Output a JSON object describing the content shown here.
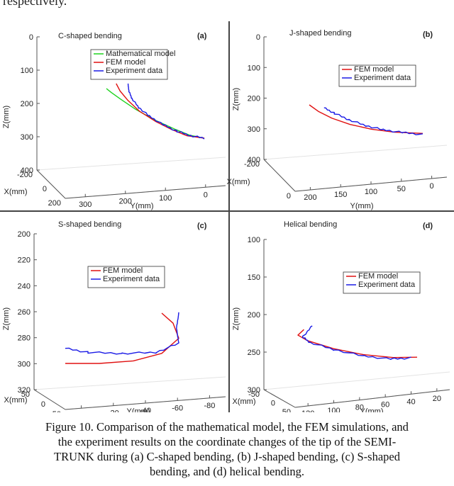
{
  "top_text": "respectively.",
  "caption_lines": [
    "Figure 10. Comparison of the mathematical model, the FEM simulations, and",
    "the experiment results on the coordinate changes of the tip of the SEMI-",
    "TRUNK during (a) C-shaped bending, (b) J-shaped bending, (c) S-shaped",
    "bending, and (d) helical bending."
  ],
  "colors": {
    "math": "#1ed31e",
    "fem": "#e01010",
    "exp": "#1a1ae6"
  },
  "chart_data": [
    {
      "id": "a",
      "type": "line",
      "title": "C-shaped bending",
      "label": "(a)",
      "z_ticks": [
        "0",
        "100",
        "200",
        "300",
        "400"
      ],
      "zlabel": "Z(mm)",
      "x_ticks": [
        "-200",
        "0",
        "200"
      ],
      "xlabel": "X(mm)",
      "y_ticks": [
        "300",
        "200",
        "100",
        "0"
      ],
      "ylabel": "Y(mm)",
      "legend": [
        "Mathematical model",
        "FEM model",
        "Experiment data"
      ],
      "series": [
        {
          "name": "Mathematical model",
          "color": "math",
          "points": [
            [
              0,
              0
            ],
            [
              0.05,
              0.08
            ],
            [
              0.15,
              0.22
            ],
            [
              0.3,
              0.42
            ],
            [
              0.5,
              0.64
            ],
            [
              0.7,
              0.82
            ],
            [
              0.85,
              0.94
            ],
            [
              1,
              1
            ]
          ]
        },
        {
          "name": "FEM model",
          "color": "fem",
          "points": [
            [
              0.1,
              -0.1
            ],
            [
              0.14,
              0.05
            ],
            [
              0.22,
              0.24
            ],
            [
              0.34,
              0.46
            ],
            [
              0.5,
              0.66
            ],
            [
              0.66,
              0.82
            ],
            [
              0.82,
              0.95
            ],
            [
              1,
              1
            ]
          ]
        },
        {
          "name": "Experiment data",
          "color": "exp",
          "points": [
            [
              0.22,
              -0.1
            ],
            [
              0.23,
              0.05
            ],
            [
              0.26,
              0.2
            ],
            [
              0.33,
              0.38
            ],
            [
              0.44,
              0.56
            ],
            [
              0.58,
              0.73
            ],
            [
              0.72,
              0.86
            ],
            [
              0.86,
              0.95
            ],
            [
              1,
              1
            ]
          ]
        }
      ]
    },
    {
      "id": "b",
      "type": "line",
      "title": "J-shaped bending",
      "label": "(b)",
      "z_ticks": [
        "0",
        "100",
        "200",
        "300",
        "400"
      ],
      "zlabel": "Z(mm)",
      "x_ticks": [
        "-200",
        "0"
      ],
      "xlabel": "X(mm)",
      "y_ticks": [
        "200",
        "150",
        "100",
        "50",
        "0"
      ],
      "ylabel": "Y(mm)",
      "legend": [
        "FEM model",
        "Experiment data"
      ],
      "series": [
        {
          "name": "FEM model",
          "color": "fem",
          "points": [
            [
              0,
              0
            ],
            [
              0.08,
              0.22
            ],
            [
              0.2,
              0.45
            ],
            [
              0.36,
              0.66
            ],
            [
              0.55,
              0.82
            ],
            [
              0.75,
              0.92
            ],
            [
              1,
              0.96
            ]
          ]
        },
        {
          "name": "Experiment data",
          "color": "exp",
          "points": [
            [
              0.13,
              0.1
            ],
            [
              0.22,
              0.28
            ],
            [
              0.35,
              0.5
            ],
            [
              0.5,
              0.7
            ],
            [
              0.65,
              0.84
            ],
            [
              0.82,
              0.93
            ],
            [
              1,
              1
            ]
          ]
        }
      ]
    },
    {
      "id": "c",
      "type": "line",
      "title": "S-shaped bending",
      "label": "(c)",
      "z_ticks": [
        "200",
        "220",
        "240",
        "260",
        "280",
        "300",
        "320"
      ],
      "zlabel": "Z(mm)",
      "x_ticks": [
        "50",
        "0",
        "-50"
      ],
      "xlabel": "X(mm)",
      "y_ticks": [
        "0",
        "-20",
        "-40",
        "-60",
        "-80"
      ],
      "ylabel": "Y(mm)",
      "legend": [
        "FEM model",
        "Experiment data"
      ],
      "series": [
        {
          "name": "FEM model",
          "color": "fem",
          "points": [
            [
              0,
              1
            ],
            [
              0.3,
              1
            ],
            [
              0.6,
              0.95
            ],
            [
              0.85,
              0.8
            ],
            [
              1,
              0.5
            ],
            [
              0.95,
              0.2
            ],
            [
              0.85,
              0
            ]
          ]
        },
        {
          "name": "Experiment data",
          "color": "exp",
          "points": [
            [
              0,
              0.7
            ],
            [
              0.2,
              0.78
            ],
            [
              0.5,
              0.8
            ],
            [
              0.8,
              0.78
            ],
            [
              1,
              0.6
            ],
            [
              0.98,
              0.3
            ],
            [
              1,
              0
            ]
          ]
        }
      ]
    },
    {
      "id": "d",
      "type": "line",
      "title": "Helical bending",
      "label": "(d)",
      "z_ticks": [
        "100",
        "150",
        "200",
        "250",
        "300"
      ],
      "zlabel": "Z(mm)",
      "x_ticks": [
        "-50",
        "0",
        "50"
      ],
      "xlabel": "X(mm)",
      "y_ticks": [
        "120",
        "100",
        "80",
        "60",
        "40",
        "20"
      ],
      "ylabel": "Y(mm)",
      "legend": [
        "FEM model",
        "Experiment data"
      ],
      "series": [
        {
          "name": "FEM model",
          "color": "fem",
          "points": [
            [
              0.05,
              0.1
            ],
            [
              0.0,
              0.25
            ],
            [
              0.08,
              0.4
            ],
            [
              0.3,
              0.62
            ],
            [
              0.55,
              0.78
            ],
            [
              0.8,
              0.86
            ],
            [
              1,
              0.85
            ]
          ]
        },
        {
          "name": "Experiment data",
          "color": "exp",
          "points": [
            [
              0.12,
              0
            ],
            [
              0.04,
              0.3
            ],
            [
              0.1,
              0.45
            ],
            [
              0.3,
              0.64
            ],
            [
              0.55,
              0.82
            ],
            [
              0.78,
              0.9
            ],
            [
              0.95,
              0.87
            ]
          ]
        }
      ]
    }
  ]
}
